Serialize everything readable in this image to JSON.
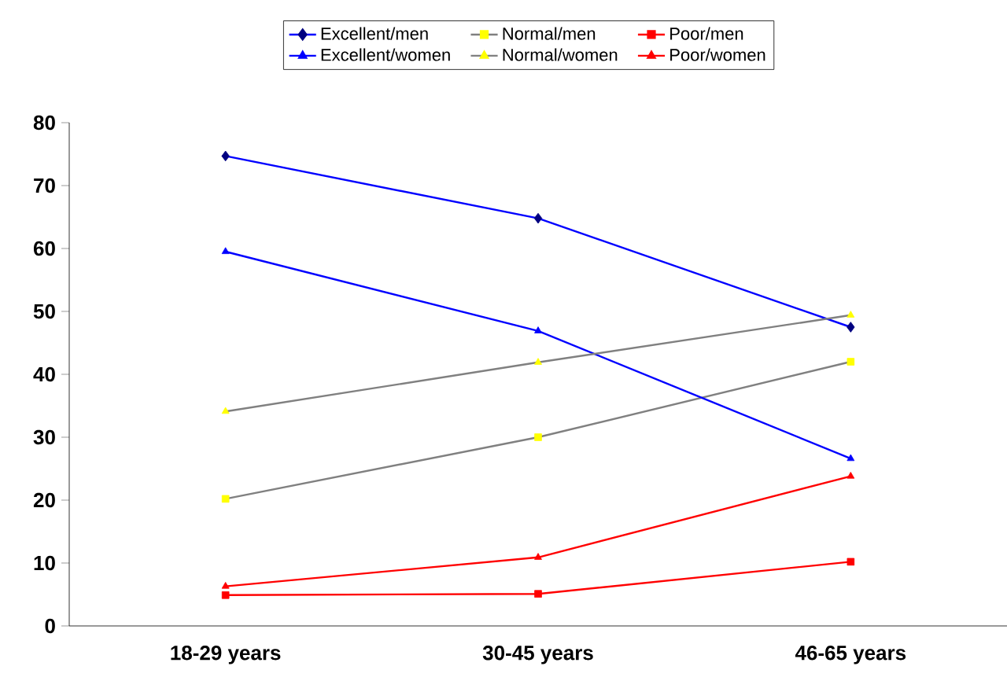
{
  "chart_data": {
    "type": "line",
    "categories": [
      "18-29 years",
      "30-45 years",
      "46-65 years"
    ],
    "series": [
      {
        "name": "Excellent/men",
        "color": "#0000ff",
        "colors": [
          "#000080",
          "#000080",
          "#000080"
        ],
        "marker": "diamond",
        "values": [
          74.7,
          64.8,
          47.5
        ]
      },
      {
        "name": "Normal/men",
        "color": "#808080",
        "colors": [
          "#ffff00",
          "#ffff00",
          "#ffff00"
        ],
        "marker": "square",
        "values": [
          20.2,
          30.0,
          42.0
        ]
      },
      {
        "name": "Poor/men",
        "color": "#ff0000",
        "colors": [
          "#ff0000",
          "#ff0000",
          "#ff0000"
        ],
        "marker": "square",
        "values": [
          4.9,
          5.1,
          10.2
        ]
      },
      {
        "name": "Excellent/women",
        "color": "#0000ff",
        "colors": [
          "#0000ff",
          "#0000ff",
          "#0000ff"
        ],
        "marker": "triangle",
        "values": [
          59.5,
          46.9,
          26.6
        ]
      },
      {
        "name": "Normal/women",
        "color": "#808080",
        "colors": [
          "#ffff00",
          "#ffff00",
          "#ffff00"
        ],
        "marker": "triangle",
        "values": [
          34.1,
          41.9,
          49.4
        ]
      },
      {
        "name": "Poor/women",
        "color": "#ff0000",
        "colors": [
          "#ff0000",
          "#ff0000",
          "#ff0000"
        ],
        "marker": "triangle",
        "values": [
          6.3,
          10.9,
          23.8
        ]
      }
    ],
    "ylim": [
      0,
      80
    ],
    "yticks": [
      0,
      10,
      20,
      30,
      40,
      50,
      60,
      70,
      80
    ],
    "grid": false,
    "legend": "top",
    "line_style": "solid"
  }
}
